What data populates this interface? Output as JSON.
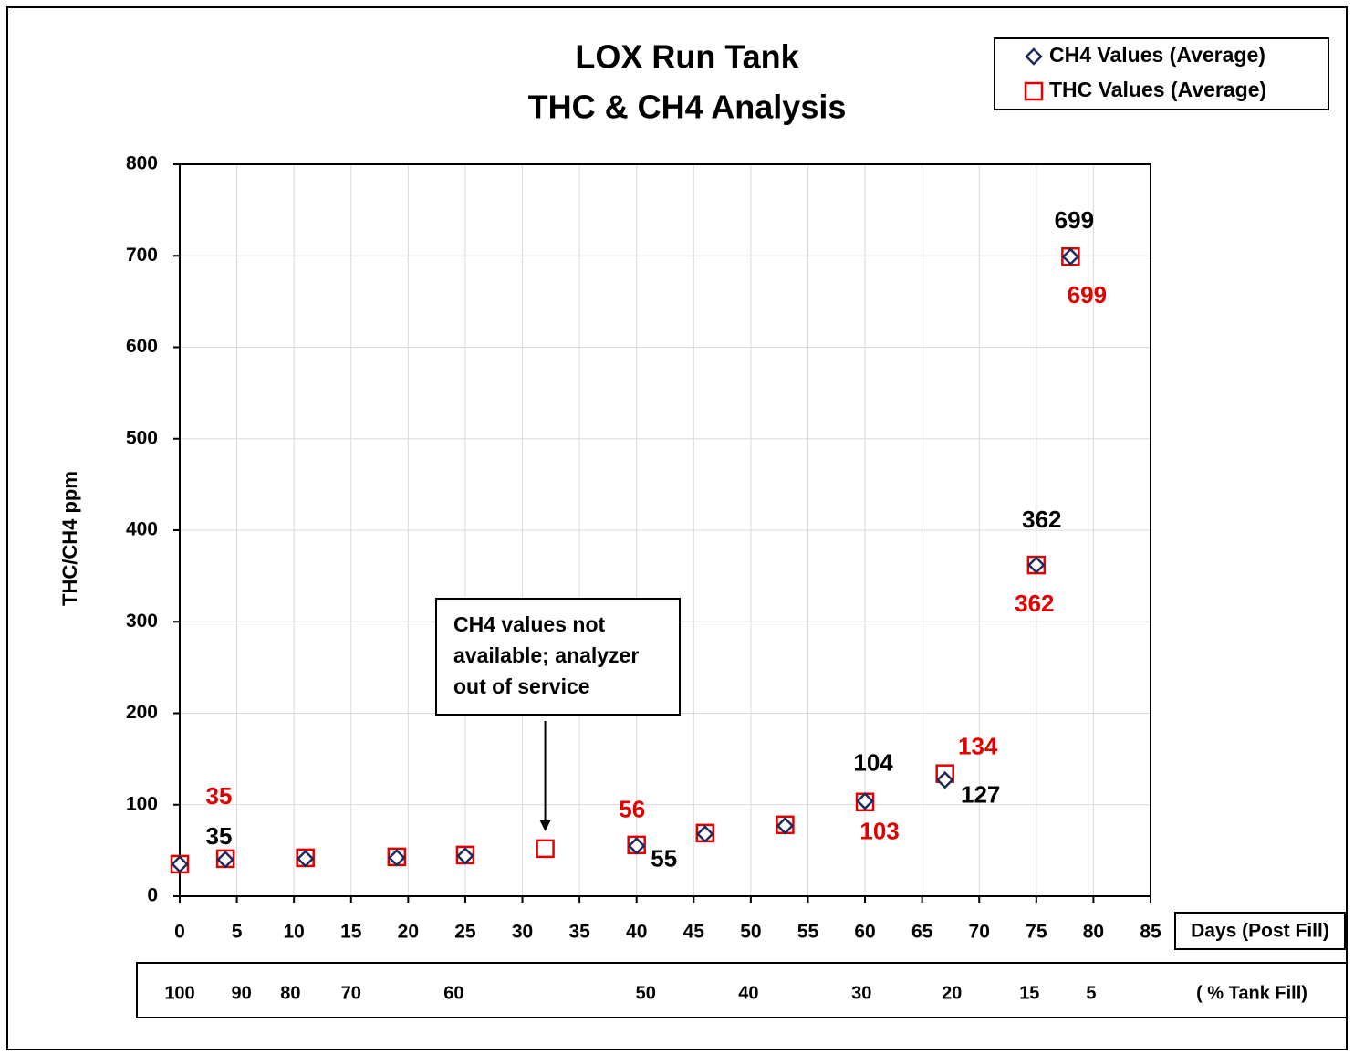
{
  "chart_data": {
    "type": "scatter",
    "title": [
      "LOX Run Tank",
      "THC & CH4 Analysis"
    ],
    "x_label": "Days (Post Fill)",
    "y_label": "THC/CH4 ppm",
    "xlim": [
      0,
      85
    ],
    "xticks": [
      0,
      5,
      10,
      15,
      20,
      25,
      30,
      35,
      40,
      45,
      50,
      55,
      60,
      65,
      70,
      75,
      80,
      85
    ],
    "ylim": [
      0,
      800
    ],
    "yticks": [
      0,
      100,
      200,
      300,
      400,
      500,
      600,
      700,
      800
    ],
    "grid": true,
    "legend": "top-right",
    "series": [
      {
        "name": "THC Values (Average)",
        "color": "#e00000",
        "marker": "square",
        "x": [
          0,
          4,
          11,
          19,
          25,
          32,
          40,
          46,
          53,
          60,
          67,
          75,
          78
        ],
        "values": [
          35,
          41,
          42,
          43,
          45,
          52,
          56,
          69,
          78,
          103,
          134,
          362,
          699
        ],
        "value_labels": [
          "35",
          null,
          null,
          null,
          null,
          null,
          "56",
          null,
          null,
          "103",
          "134",
          "362",
          "699"
        ]
      },
      {
        "name": "CH4 Values (Average)",
        "color": "#1f2a5c",
        "marker": "diamond",
        "x": [
          0,
          4,
          11,
          19,
          25,
          40,
          46,
          53,
          60,
          67,
          75,
          78
        ],
        "values": [
          35,
          40,
          41,
          42,
          44,
          55,
          68,
          77,
          104,
          127,
          362,
          699
        ],
        "value_labels": [
          "35",
          null,
          null,
          null,
          null,
          "55",
          null,
          null,
          "104",
          "127",
          "362",
          "699"
        ]
      }
    ],
    "annotation": {
      "lines": [
        "CH4 values not",
        "available; analyzer",
        "out of service"
      ],
      "x": 32,
      "y": 51
    },
    "tank_fill": {
      "label": "( % Tank Fill)",
      "ticks": [
        {
          "value": 0,
          "label": "100"
        },
        {
          "value": 5.4,
          "label": "90"
        },
        {
          "value": 9.7,
          "label": "80"
        },
        {
          "value": 15,
          "label": "70"
        },
        {
          "value": 24,
          "label": "60"
        },
        {
          "value": 40.8,
          "label": "50"
        },
        {
          "value": 49.8,
          "label": "40"
        },
        {
          "value": 59.7,
          "label": "30"
        },
        {
          "value": 67.6,
          "label": "20"
        },
        {
          "value": 74.4,
          "label": "15"
        },
        {
          "value": 79.8,
          "label": "5"
        }
      ]
    }
  }
}
